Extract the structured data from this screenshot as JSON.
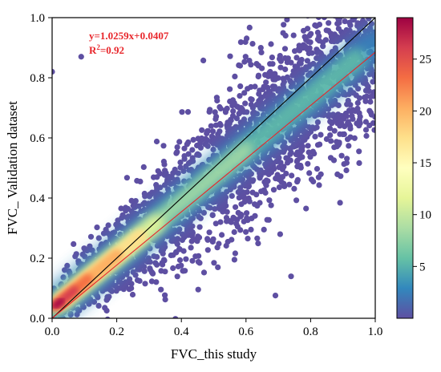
{
  "chart_data": {
    "type": "scatter",
    "title": "",
    "xlabel": "FVC_this study",
    "ylabel": "FVC_ Validation dataset",
    "xlim": [
      0.0,
      1.0
    ],
    "ylim": [
      0.0,
      1.0
    ],
    "xticks": [
      "0.0",
      "0.2",
      "0.4",
      "0.6",
      "0.8",
      "1.0"
    ],
    "yticks": [
      "0.0",
      "0.2",
      "0.4",
      "0.6",
      "0.8",
      "1.0"
    ],
    "grid": false,
    "density_colormap": "Spectral_r",
    "colorbar": {
      "range": [
        0,
        29
      ],
      "ticks": [
        "5",
        "10",
        "15",
        "20",
        "25"
      ],
      "tick_values": [
        5,
        10,
        15,
        20,
        25
      ]
    },
    "fit_line": {
      "slope": 1.0259,
      "intercept": 0.0407,
      "color": "#e8262b"
    },
    "reference_line": {
      "slope": 1.0,
      "intercept": 0.0,
      "color": "#000000"
    },
    "annotation": {
      "equation": "y=1.0259x+0.0407",
      "r2_prefix": "R",
      "r2_sup": "2",
      "r2_suffix": "=0.92",
      "color": "#e8262b"
    },
    "point_color_low": "#5e4fa2",
    "density_band": {
      "description_values": "points concentrated along 1:1 line, highest density near x=0.05-0.25",
      "peak_x": 0.1,
      "peak_y": 0.07
    },
    "outliers": [
      {
        "x": 0.0,
        "y": 0.82
      },
      {
        "x": 0.09,
        "y": 0.87
      }
    ]
  }
}
